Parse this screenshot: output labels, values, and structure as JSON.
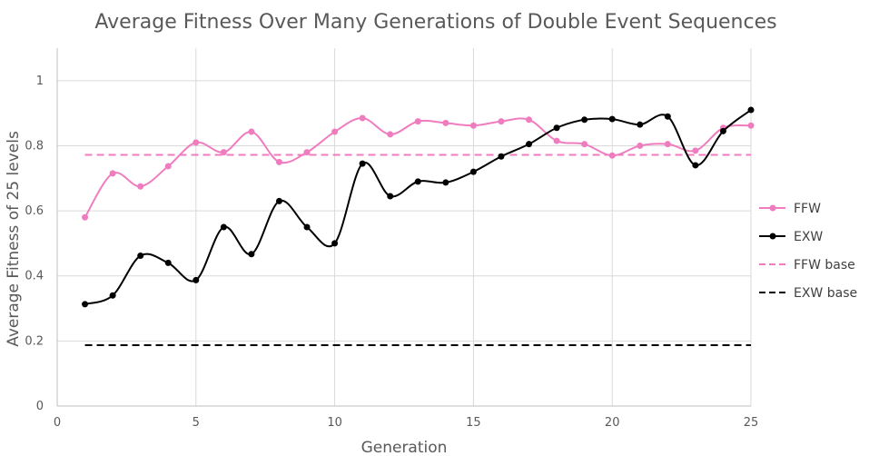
{
  "chart_data": {
    "type": "line",
    "title": "Average Fitness Over Many Generations of Double Event Sequences",
    "xlabel": "Generation",
    "ylabel": "Average Fitness of 25 levels",
    "xlim": [
      0,
      25
    ],
    "ylim": [
      0,
      1.1
    ],
    "x_ticks": [
      0,
      5,
      10,
      15,
      20,
      25
    ],
    "x_tick_labels": [
      "0",
      "5",
      "10",
      "15",
      "20",
      "25"
    ],
    "y_ticks": [
      0,
      0.2,
      0.4,
      0.6,
      0.8,
      1
    ],
    "y_tick_labels": [
      "0",
      "0.2",
      "0.4",
      "0.6",
      "0.8",
      "1"
    ],
    "grid": true,
    "legend_position": "right",
    "series": [
      {
        "name": "FFW",
        "color": "#f07cc0",
        "style": "solid-smooth-markers",
        "x": [
          1,
          2,
          3,
          4,
          5,
          6,
          7,
          8,
          9,
          10,
          11,
          12,
          13,
          14,
          15,
          16,
          17,
          18,
          19,
          20,
          21,
          22,
          23,
          24,
          25
        ],
        "values": [
          0.58,
          0.715,
          0.675,
          0.737,
          0.81,
          0.78,
          0.843,
          0.75,
          0.78,
          0.843,
          0.885,
          0.835,
          0.875,
          0.87,
          0.862,
          0.875,
          0.88,
          0.815,
          0.805,
          0.77,
          0.8,
          0.805,
          0.785,
          0.855,
          0.862
        ]
      },
      {
        "name": "EXW",
        "color": "#000000",
        "style": "solid-smooth-markers",
        "x": [
          1,
          2,
          3,
          4,
          5,
          6,
          7,
          8,
          9,
          10,
          11,
          12,
          13,
          14,
          15,
          16,
          17,
          18,
          19,
          20,
          21,
          22,
          23,
          24,
          25
        ],
        "values": [
          0.313,
          0.34,
          0.462,
          0.44,
          0.387,
          0.55,
          0.467,
          0.63,
          0.55,
          0.5,
          0.745,
          0.645,
          0.69,
          0.687,
          0.72,
          0.767,
          0.805,
          0.855,
          0.88,
          0.882,
          0.865,
          0.89,
          0.74,
          0.845,
          0.91
        ]
      },
      {
        "name": "FFW base",
        "color": "#f07cc0",
        "style": "dashed",
        "x": [
          1,
          25
        ],
        "values": [
          0.772,
          0.772
        ]
      },
      {
        "name": "EXW base",
        "color": "#000000",
        "style": "dashed",
        "x": [
          1,
          25
        ],
        "values": [
          0.187,
          0.187
        ]
      }
    ]
  }
}
